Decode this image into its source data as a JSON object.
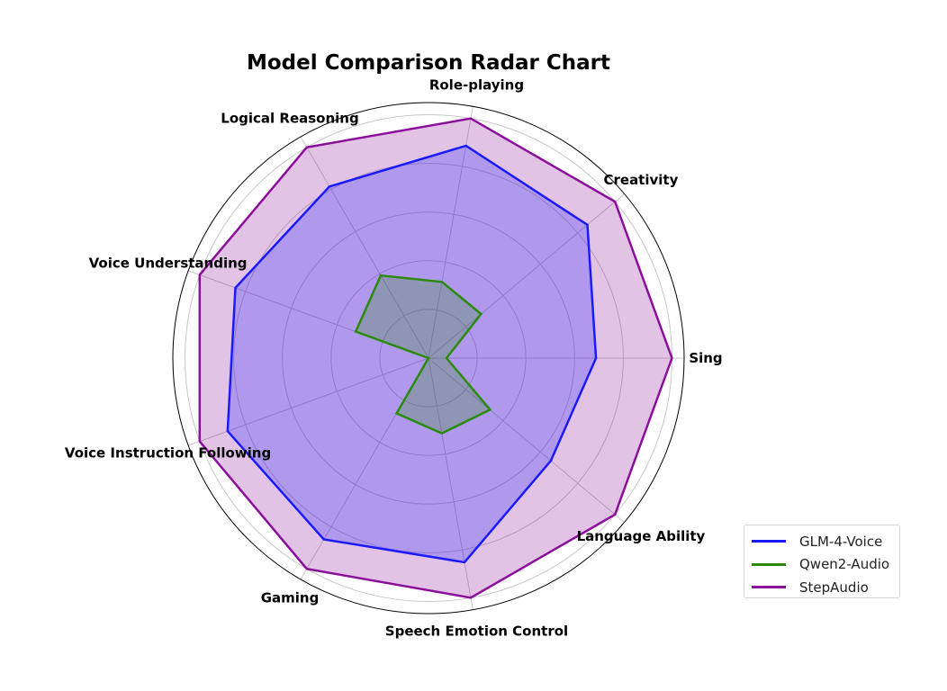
{
  "chart_data": {
    "type": "radar",
    "title": "Model Comparison Radar Chart",
    "categories": [
      "Sing",
      "Creativity",
      "Role-playing",
      "Logical Reasoning",
      "Voice Understanding",
      "Voice Instruction Following",
      "Gaming",
      "Speech Emotion Control",
      "Language Ability"
    ],
    "rlim": [
      0,
      5.25
    ],
    "rgrid": [
      1,
      2,
      3,
      4,
      5
    ],
    "grid": true,
    "legend_position": "bottom-right",
    "series": [
      {
        "name": "GLM-4-Voice",
        "color": "#1a1aff",
        "values": [
          3.44,
          4.26,
          4.43,
          4.07,
          4.22,
          4.39,
          4.3,
          4.26,
          3.28
        ]
      },
      {
        "name": "Qwen2-Audio",
        "color": "#2a8a0a",
        "values": [
          0.37,
          1.41,
          1.59,
          1.96,
          1.59,
          0,
          1.31,
          1.57,
          1.65
        ]
      },
      {
        "name": "StepAudio",
        "color": "#8b0f9b",
        "values": [
          5,
          5,
          5,
          5,
          5,
          5,
          5,
          5,
          5
        ]
      }
    ]
  }
}
